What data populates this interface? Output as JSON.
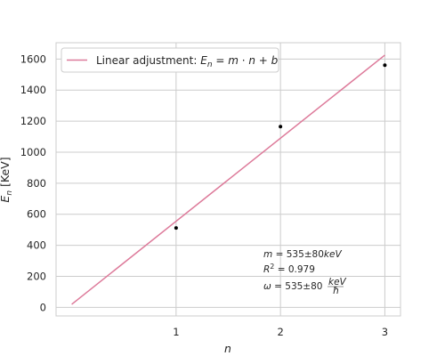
{
  "chart_data": {
    "type": "scatter",
    "xlabel": "n",
    "ylabel": "E_n [KeV]",
    "x_ticks": [
      1,
      2,
      3
    ],
    "y_ticks": [
      0,
      200,
      400,
      600,
      800,
      1000,
      1200,
      1400,
      1600
    ],
    "xlim": [
      -0.15,
      3.15
    ],
    "ylim": [
      -55,
      1705
    ],
    "grid": true,
    "points": [
      {
        "x": 1,
        "y": 512
      },
      {
        "x": 2,
        "y": 1165
      },
      {
        "x": 3,
        "y": 1560
      }
    ],
    "fit_line": {
      "name": "Linear adjustment: E_n = m · n + b",
      "x": [
        0,
        3
      ],
      "y": [
        20,
        1625
      ],
      "color": "#dd7a9a"
    },
    "legend": {
      "placement": "top-left"
    },
    "annotations": [
      "m = 535±80keV",
      "R² = 0.979",
      "ω = 535±80 keV/ħ"
    ],
    "colors": {
      "points": "#000000",
      "grid": "#cccccc",
      "spine": "#cccccc"
    }
  }
}
